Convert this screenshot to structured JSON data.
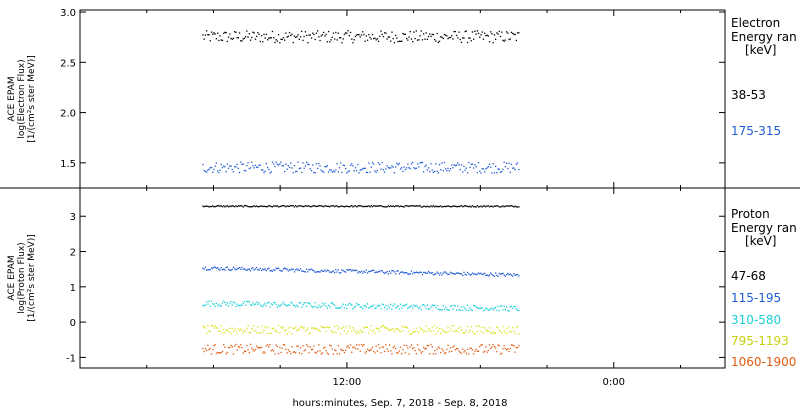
{
  "chart_data": [
    {
      "type": "scatter",
      "panel": "electron",
      "ylabel_lines": [
        "ACE EPAM",
        "log(Electron Flux)",
        "[1/(cm²s ster MeV)]"
      ],
      "legend_title_lines": [
        "Electron",
        "Energy ran",
        "[keV]"
      ],
      "ylim": [
        1.25,
        3.02
      ],
      "yticks": [
        1.5,
        2.0,
        2.5,
        3.0
      ],
      "ytick_labels": [
        "1.5",
        "2.0",
        "2.5",
        "3.0"
      ],
      "series": [
        {
          "name": "38-53",
          "color": "#000000",
          "x_start": 5.5,
          "x_end": 19.7,
          "baseline": 2.76,
          "noise": 0.06
        },
        {
          "name": "175-315",
          "color": "#1f5bd6",
          "x_start": 5.5,
          "x_end": 19.7,
          "baseline": 1.46,
          "noise": 0.055
        }
      ]
    },
    {
      "type": "scatter",
      "panel": "proton",
      "ylabel_lines": [
        "ACE EPAM",
        "log(Proton Flux)",
        "[1/(cm²s ster MeV)]"
      ],
      "legend_title_lines": [
        "Proton",
        "Energy ran",
        "[keV]"
      ],
      "ylim": [
        -1.3,
        3.8
      ],
      "yticks": [
        -1,
        0,
        1,
        2,
        3
      ],
      "ytick_labels": [
        "-1",
        "0",
        "1",
        "2",
        "3"
      ],
      "series": [
        {
          "name": "47-68",
          "color": "#000000",
          "x_start": 5.5,
          "x_end": 19.7,
          "baseline": 3.3,
          "noise": 0.02
        },
        {
          "name": "115-195",
          "color": "#1f5bd6",
          "x_start": 5.5,
          "x_end": 19.7,
          "baseline": 1.4,
          "noise": 0.05
        },
        {
          "name": "310-580",
          "color": "#1ad0d8",
          "x_start": 5.5,
          "x_end": 19.7,
          "baseline": 0.45,
          "noise": 0.08
        },
        {
          "name": "795-1193",
          "color": "#d9e020",
          "x_start": 5.5,
          "x_end": 19.7,
          "baseline": -0.2,
          "noise": 0.12
        },
        {
          "name": "1060-1900",
          "color": "#e05a10",
          "x_start": 5.5,
          "x_end": 19.7,
          "baseline": -0.75,
          "noise": 0.14
        }
      ]
    }
  ],
  "x_axis": {
    "xlim": [
      0,
      29
    ],
    "major_ticks": [
      12,
      24
    ],
    "tick_labels": [
      "12:00",
      "0:00"
    ],
    "minor_ticks": [
      3,
      6,
      9,
      15,
      18,
      21,
      27
    ],
    "xlabel": "hours:minutes, Sep.  7, 2018 - Sep.  8, 2018"
  }
}
